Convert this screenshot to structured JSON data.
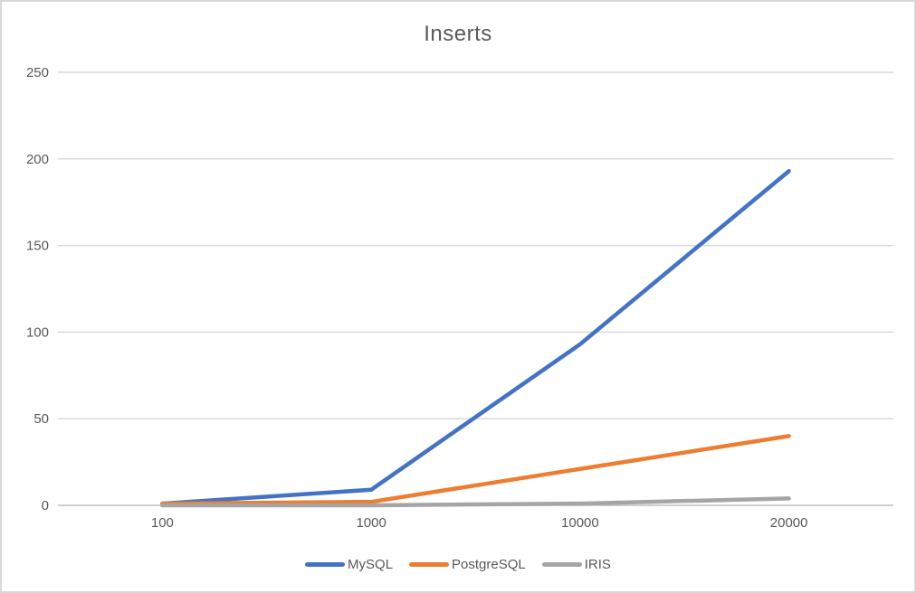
{
  "chart_data": {
    "type": "line",
    "title": "Inserts",
    "categories": [
      "100",
      "1000",
      "10000",
      "20000"
    ],
    "series": [
      {
        "name": "MySQL",
        "color": "#4472C4",
        "values": [
          1,
          9,
          93,
          193
        ]
      },
      {
        "name": "PostgreSQL",
        "color": "#ED7D31",
        "values": [
          1,
          2,
          21,
          40
        ]
      },
      {
        "name": "IRIS",
        "color": "#A5A5A5",
        "values": [
          0,
          0,
          1,
          4
        ]
      }
    ],
    "yticks": [
      0,
      50,
      100,
      150,
      200,
      250
    ],
    "ylim": [
      0,
      250
    ],
    "xlabel": "",
    "ylabel": "",
    "grid": true,
    "legend_position": "bottom"
  },
  "colors": {
    "background": "#FFFFFF",
    "border": "#D9D9D9",
    "gridline": "#D9D9D9",
    "axis_line": "#BFBFBF",
    "title_text": "#595959",
    "axis_text": "#595959",
    "legend_text": "#595959"
  }
}
